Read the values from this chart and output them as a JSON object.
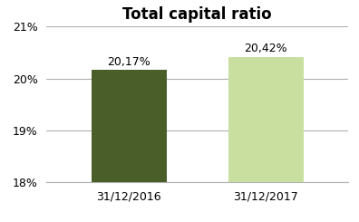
{
  "categories": [
    "31/12/2016",
    "31/12/2017"
  ],
  "values": [
    20.17,
    20.42
  ],
  "bar_colors": [
    "#4a5e2a",
    "#c8dfa0"
  ],
  "bar_labels": [
    "20,17%",
    "20,42%"
  ],
  "title": "Total capital ratio",
  "ylim": [
    18.0,
    21.0
  ],
  "yticks": [
    18.0,
    19.0,
    20.0,
    21.0
  ],
  "title_fontsize": 12,
  "tick_fontsize": 9,
  "label_fontsize": 9,
  "background_color": "#ffffff",
  "grid_color": "#b0b0b0"
}
